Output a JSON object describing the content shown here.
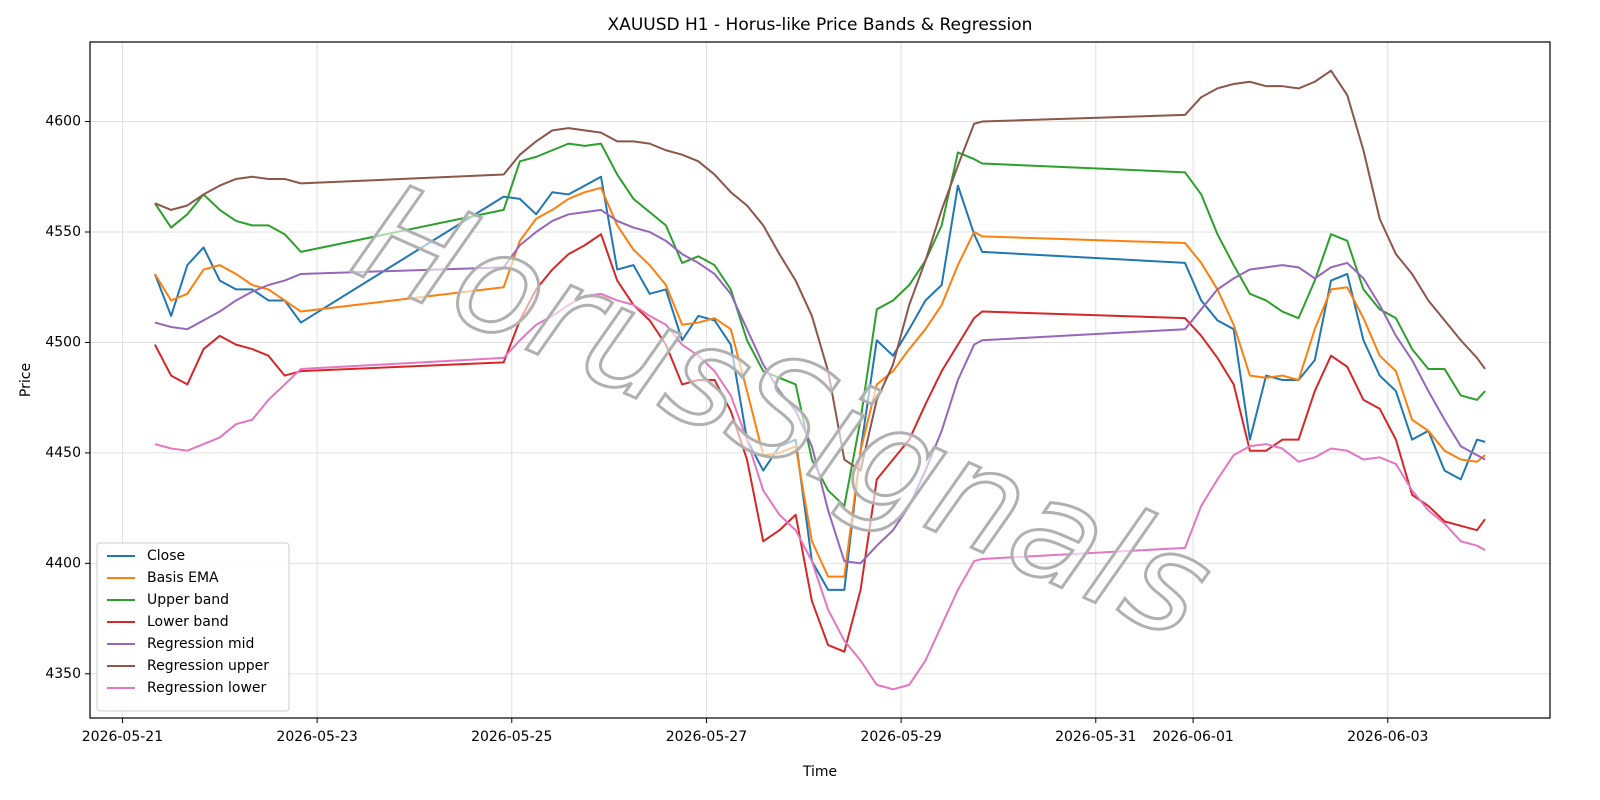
{
  "chart_data": {
    "type": "line",
    "title": "XAUUSD H1 - Horus-like Price Bands & Regression",
    "x_label": "Time",
    "y_label": "Price",
    "watermark": "HorusSignals",
    "grid": true,
    "legend_position": "lower left",
    "x": [
      "2026-05-21 08:00",
      "2026-05-21 12:00",
      "2026-05-21 16:00",
      "2026-05-21 20:00",
      "2026-05-22 00:00",
      "2026-05-22 04:00",
      "2026-05-22 08:00",
      "2026-05-22 12:00",
      "2026-05-22 16:00",
      "2026-05-22 20:00",
      "2026-05-24 22:00",
      "2026-05-25 02:00",
      "2026-05-25 06:00",
      "2026-05-25 10:00",
      "2026-05-25 14:00",
      "2026-05-25 18:00",
      "2026-05-25 22:00",
      "2026-05-26 02:00",
      "2026-05-26 06:00",
      "2026-05-26 10:00",
      "2026-05-26 14:00",
      "2026-05-26 18:00",
      "2026-05-26 22:00",
      "2026-05-27 02:00",
      "2026-05-27 06:00",
      "2026-05-27 10:00",
      "2026-05-27 14:00",
      "2026-05-27 18:00",
      "2026-05-27 22:00",
      "2026-05-28 02:00",
      "2026-05-28 06:00",
      "2026-05-28 10:00",
      "2026-05-28 14:00",
      "2026-05-28 18:00",
      "2026-05-28 22:00",
      "2026-05-29 02:00",
      "2026-05-29 06:00",
      "2026-05-29 10:00",
      "2026-05-29 14:00",
      "2026-05-29 18:00",
      "2026-05-29 20:00",
      "2026-05-31 22:00",
      "2026-06-01 02:00",
      "2026-06-01 06:00",
      "2026-06-01 10:00",
      "2026-06-01 14:00",
      "2026-06-01 18:00",
      "2026-06-01 22:00",
      "2026-06-02 02:00",
      "2026-06-02 06:00",
      "2026-06-02 10:00",
      "2026-06-02 14:00",
      "2026-06-02 18:00",
      "2026-06-02 22:00",
      "2026-06-03 02:00",
      "2026-06-03 06:00",
      "2026-06-03 10:00",
      "2026-06-03 14:00",
      "2026-06-03 18:00",
      "2026-06-03 22:00",
      "2026-06-04 00:00"
    ],
    "series": [
      {
        "name": "Close",
        "color": "#1f77b4",
        "values": [
          4531,
          4512,
          4535,
          4543,
          4528,
          4524,
          4524,
          4519,
          4519,
          4509,
          4566,
          4565,
          4558,
          4568,
          4567,
          4571,
          4575,
          4533,
          4535,
          4522,
          4524,
          4501,
          4512,
          4510,
          4499,
          4456,
          4442,
          4453,
          4456,
          4401,
          4388,
          4388,
          4451,
          4501,
          4494,
          4506,
          4519,
          4526,
          4571,
          4549,
          4541,
          4536,
          4519,
          4510,
          4506,
          4456,
          4485,
          4483,
          4483,
          4492,
          4528,
          4531,
          4501,
          4485,
          4478,
          4456,
          4460,
          4442,
          4438,
          4456,
          4455
        ]
      },
      {
        "name": "Basis EMA",
        "color": "#ff7f0e",
        "values": [
          4531,
          4519,
          4522,
          4533,
          4535,
          4531,
          4526,
          4524,
          4519,
          4514,
          4525,
          4546,
          4556,
          4560,
          4565,
          4568,
          4570,
          4553,
          4542,
          4535,
          4526,
          4508,
          4509,
          4511,
          4506,
          4478,
          4449,
          4450,
          4453,
          4410,
          4394,
          4394,
          4451,
          4481,
          4487,
          4497,
          4506,
          4517,
          4535,
          4550,
          4548,
          4545,
          4536,
          4524,
          4508,
          4485,
          4484,
          4485,
          4483,
          4506,
          4524,
          4525,
          4511,
          4494,
          4487,
          4465,
          4460,
          4451,
          4447,
          4446,
          4449
        ]
      },
      {
        "name": "Upper band",
        "color": "#2ca02c",
        "values": [
          4563,
          4552,
          4558,
          4567,
          4560,
          4555,
          4553,
          4553,
          4549,
          4541,
          4560,
          4582,
          4584,
          4587,
          4590,
          4589,
          4590,
          4576,
          4565,
          4559,
          4553,
          4536,
          4539,
          4535,
          4524,
          4501,
          4487,
          4484,
          4481,
          4447,
          4433,
          4426,
          4465,
          4515,
          4519,
          4526,
          4537,
          4553,
          4586,
          4583,
          4581,
          4577,
          4567,
          4549,
          4535,
          4522,
          4519,
          4514,
          4511,
          4528,
          4549,
          4546,
          4524,
          4515,
          4511,
          4497,
          4488,
          4488,
          4476,
          4474,
          4478
        ]
      },
      {
        "name": "Lower band",
        "color": "#d62728",
        "values": [
          4499,
          4485,
          4481,
          4497,
          4503,
          4499,
          4497,
          4494,
          4485,
          4487,
          4491,
          4510,
          4524,
          4533,
          4540,
          4544,
          4549,
          4528,
          4517,
          4510,
          4499,
          4481,
          4483,
          4483,
          4469,
          4447,
          4410,
          4415,
          4422,
          4383,
          4363,
          4360,
          4388,
          4438,
          4447,
          4456,
          4472,
          4487,
          4499,
          4511,
          4514,
          4511,
          4503,
          4493,
          4481,
          4451,
          4451,
          4456,
          4456,
          4478,
          4494,
          4489,
          4474,
          4470,
          4456,
          4431,
          4426,
          4419,
          4417,
          4415,
          4420
        ]
      },
      {
        "name": "Regression mid",
        "color": "#9467bd",
        "values": [
          4509,
          4507,
          4506,
          4510,
          4514,
          4519,
          4523,
          4526,
          4528,
          4531,
          4534,
          4544,
          4550,
          4555,
          4558,
          4559,
          4560,
          4555,
          4552,
          4550,
          4546,
          4540,
          4536,
          4531,
          4522,
          4506,
          4490,
          4478,
          4469,
          4453,
          4424,
          4401,
          4400,
          4408,
          4415,
          4426,
          4442,
          4460,
          4483,
          4499,
          4501,
          4506,
          4515,
          4524,
          4529,
          4533,
          4534,
          4535,
          4534,
          4529,
          4534,
          4536,
          4529,
          4517,
          4503,
          4492,
          4478,
          4465,
          4453,
          4449,
          4447
        ]
      },
      {
        "name": "Regression upper",
        "color": "#8c564b",
        "values": [
          4563,
          4560,
          4562,
          4567,
          4571,
          4574,
          4575,
          4574,
          4574,
          4572,
          4576,
          4585,
          4591,
          4596,
          4597,
          4596,
          4595,
          4591,
          4591,
          4590,
          4587,
          4585,
          4582,
          4576,
          4568,
          4562,
          4553,
          4540,
          4528,
          4512,
          4487,
          4447,
          4442,
          4474,
          4490,
          4517,
          4537,
          4560,
          4580,
          4599,
          4600,
          4603,
          4611,
          4615,
          4617,
          4618,
          4616,
          4616,
          4615,
          4618,
          4623,
          4612,
          4587,
          4556,
          4540,
          4531,
          4519,
          4510,
          4501,
          4493,
          4488
        ]
      },
      {
        "name": "Regression lower",
        "color": "#e377c2",
        "values": [
          4454,
          4452,
          4451,
          4454,
          4457,
          4463,
          4465,
          4474,
          4481,
          4488,
          4493,
          4501,
          4508,
          4512,
          4517,
          4521,
          4522,
          4519,
          4517,
          4512,
          4508,
          4499,
          4494,
          4487,
          4476,
          4456,
          4433,
          4422,
          4415,
          4401,
          4379,
          4365,
          4356,
          4345,
          4343,
          4345,
          4356,
          4372,
          4388,
          4401,
          4402,
          4407,
          4426,
          4438,
          4449,
          4453,
          4454,
          4452,
          4446,
          4448,
          4452,
          4451,
          4447,
          4448,
          4445,
          4433,
          4424,
          4418,
          4410,
          4408,
          4406
        ]
      }
    ],
    "xlim": [
      "2026-05-20 16:00",
      "2026-06-04 16:00"
    ],
    "xticks": [
      "2026-05-21",
      "2026-05-23",
      "2026-05-25",
      "2026-05-27",
      "2026-05-29",
      "2026-05-31",
      "2026-06-01",
      "2026-06-03"
    ],
    "ylim": [
      4330,
      4636
    ],
    "yticks": [
      4350,
      4400,
      4450,
      4500,
      4550,
      4600
    ]
  }
}
